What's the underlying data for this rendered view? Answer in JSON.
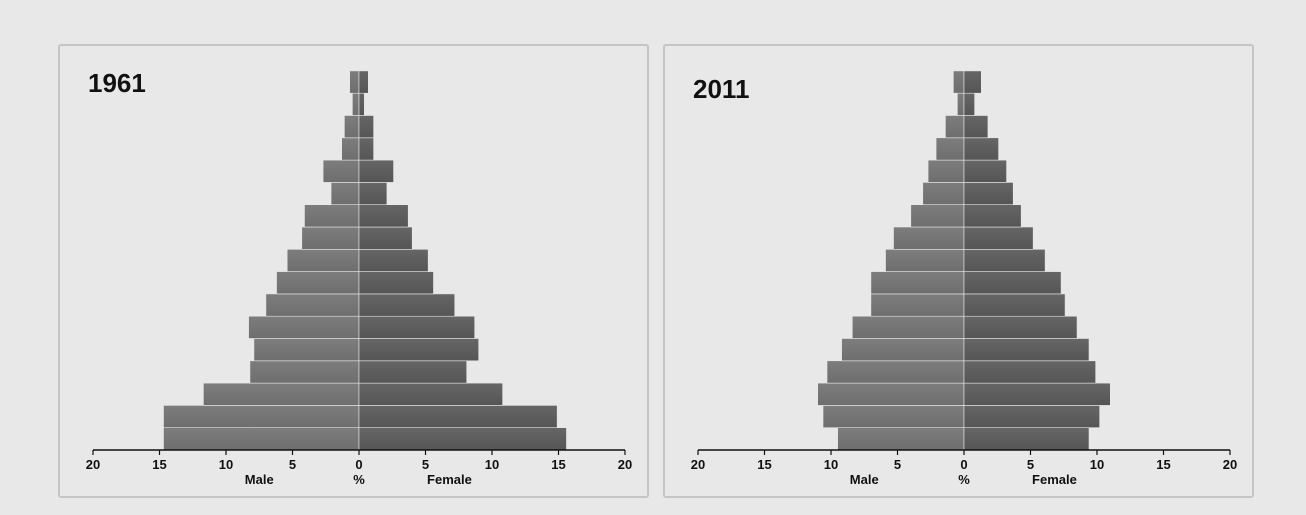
{
  "chart_data": [
    {
      "type": "bar",
      "title": "1961",
      "orientation": "population-pyramid",
      "xlim": [
        -20,
        20
      ],
      "xticks": [
        "20",
        "15",
        "10",
        "5",
        "0",
        "5",
        "10",
        "15",
        "20"
      ],
      "xlabel_left": "Male",
      "xlabel_center": "%",
      "xlabel_right": "Female",
      "series": [
        {
          "name": "Male",
          "values": [
            14.7,
            14.7,
            11.7,
            8.2,
            7.9,
            8.3,
            7.0,
            6.2,
            5.4,
            4.3,
            4.1,
            2.1,
            2.7,
            1.3,
            1.1,
            0.5,
            0.7
          ]
        },
        {
          "name": "Female",
          "values": [
            15.6,
            14.9,
            10.8,
            8.1,
            9.0,
            8.7,
            7.2,
            5.6,
            5.2,
            4.0,
            3.7,
            2.1,
            2.6,
            1.1,
            1.1,
            0.4,
            0.7
          ]
        }
      ]
    },
    {
      "type": "bar",
      "title": "2011",
      "orientation": "population-pyramid",
      "xlim": [
        -20,
        20
      ],
      "xticks": [
        "20",
        "15",
        "10",
        "5",
        "0",
        "5",
        "10",
        "15",
        "20"
      ],
      "xlabel_left": "Male",
      "xlabel_center": "%",
      "xlabel_right": "Female",
      "series": [
        {
          "name": "Male",
          "values": [
            9.5,
            10.6,
            11.0,
            10.3,
            9.2,
            8.4,
            7.0,
            7.0,
            5.9,
            5.3,
            4.0,
            3.1,
            2.7,
            2.1,
            1.4,
            0.5,
            0.8
          ]
        },
        {
          "name": "Female",
          "values": [
            9.4,
            10.2,
            11.0,
            9.9,
            9.4,
            8.5,
            7.6,
            7.3,
            6.1,
            5.2,
            4.3,
            3.7,
            3.2,
            2.6,
            1.8,
            0.8,
            1.3
          ]
        }
      ]
    }
  ],
  "colors": {
    "bar_male": "#6e6e6e",
    "bar_female": "#555555",
    "axis": "#111111",
    "panel_border": "#c5c5c5",
    "background": "#e8e8e9"
  }
}
